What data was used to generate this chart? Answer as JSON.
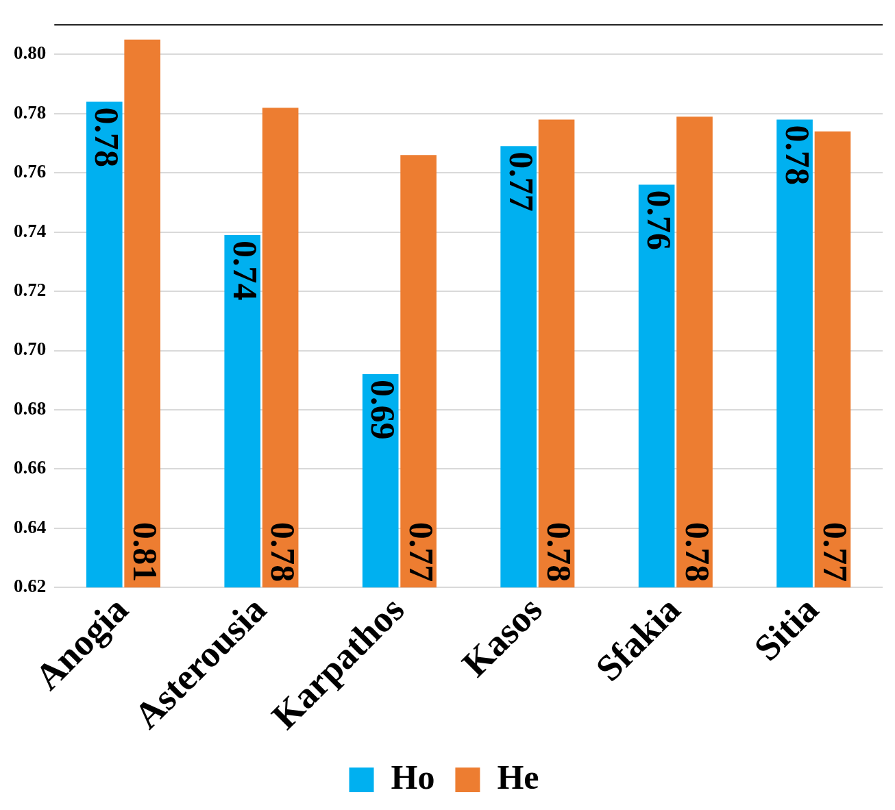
{
  "chart_data": {
    "type": "bar",
    "categories": [
      "Anogia",
      "Asterousia",
      "Karpathos",
      "Kasos",
      "Sfakia",
      "Sitia"
    ],
    "series": [
      {
        "name": "Ho",
        "color": "#00b0f0",
        "values": [
          0.784,
          0.739,
          0.692,
          0.769,
          0.756,
          0.778
        ],
        "value_labels": [
          "0.78",
          "0.74",
          "0.69",
          "0.77",
          "0.76",
          "0.78"
        ]
      },
      {
        "name": "He",
        "color": "#ed7d31",
        "values": [
          0.805,
          0.782,
          0.766,
          0.778,
          0.779,
          0.774
        ],
        "value_labels": [
          "0.81",
          "0.78",
          "0.77",
          "0.78",
          "0.78",
          "0.77"
        ]
      }
    ],
    "ylim": [
      0.62,
      0.81
    ],
    "yticks": [
      {
        "value": 0.62,
        "label": "0.62"
      },
      {
        "value": 0.64,
        "label": "0.64"
      },
      {
        "value": 0.66,
        "label": "0.66"
      },
      {
        "value": 0.68,
        "label": "0.68"
      },
      {
        "value": 0.7,
        "label": "0.70"
      },
      {
        "value": 0.72,
        "label": "0.72"
      },
      {
        "value": 0.74,
        "label": "0.74"
      },
      {
        "value": 0.76,
        "label": "0.76"
      },
      {
        "value": 0.78,
        "label": "0.78"
      },
      {
        "value": 0.8,
        "label": "0.80"
      }
    ],
    "grid": "y",
    "legend": "bottom"
  }
}
